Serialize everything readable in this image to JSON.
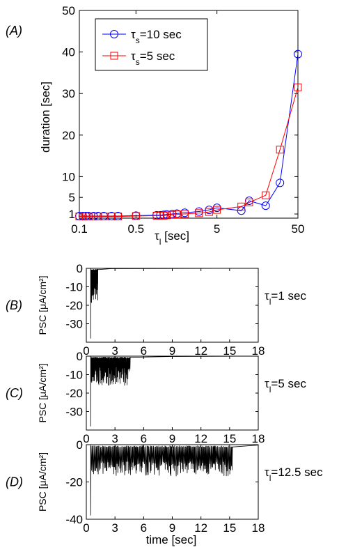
{
  "chart_data": [
    {
      "panel": "(A)",
      "type": "line",
      "xlabel": "τ_l [sec]",
      "ylabel": "duration [sec]",
      "xscale": "log",
      "xlim": [
        0.1,
        50
      ],
      "ylim": [
        0,
        50
      ],
      "xticks": [
        "0.1",
        "0.5",
        "5",
        "50"
      ],
      "yticks": [
        "1",
        "5",
        "10",
        "20",
        "30",
        "40",
        "50"
      ],
      "legend_position": "top-left",
      "series": [
        {
          "name": "τ_s=10 sec",
          "color": "#0000ff",
          "marker": "circle",
          "x": [
            0.1,
            0.11,
            0.12,
            0.13,
            0.15,
            0.17,
            0.2,
            0.25,
            0.3,
            0.5,
            0.9,
            1.0,
            1.1,
            1.2,
            1.4,
            1.6,
            2,
            3,
            4,
            5,
            10,
            12.5,
            20,
            30,
            50
          ],
          "y": [
            0.5,
            0.5,
            0.5,
            0.5,
            0.5,
            0.5,
            0.5,
            0.5,
            0.5,
            0.6,
            0.7,
            0.7,
            0.8,
            0.9,
            1.0,
            1.1,
            1.3,
            1.6,
            2.0,
            2.5,
            1.8,
            4.2,
            3.0,
            8.5,
            39.5
          ]
        },
        {
          "name": "τ_s=5 sec",
          "color": "#ff0000",
          "marker": "square",
          "x": [
            0.1,
            0.11,
            0.12,
            0.13,
            0.15,
            0.17,
            0.2,
            0.25,
            0.3,
            0.5,
            0.9,
            1.0,
            1.1,
            1.2,
            1.4,
            1.6,
            2,
            3,
            4,
            5,
            10,
            12.5,
            20,
            30,
            50
          ],
          "y": [
            0.4,
            0.4,
            0.4,
            0.4,
            0.4,
            0.4,
            0.4,
            0.4,
            0.4,
            0.5,
            0.6,
            0.6,
            0.6,
            0.7,
            0.8,
            0.9,
            1.0,
            1.2,
            1.5,
            2.0,
            2.8,
            3.8,
            5.5,
            16.5,
            31.5
          ]
        }
      ]
    },
    {
      "panel": "(B)",
      "type": "line",
      "ylabel": "PSC [μA/cm²]",
      "annotation": "τ_l=1 sec",
      "xlim": [
        0,
        18
      ],
      "ylim": [
        -40,
        0
      ],
      "xticks": [
        "0",
        "3",
        "6",
        "9",
        "12",
        "15",
        "18"
      ],
      "yticks": [
        "0",
        "-10",
        "-20",
        "-30"
      ],
      "trace": {
        "spike_start": 0.45,
        "spike_end": 1.2,
        "first_amp": -38,
        "amp": -13,
        "amp_jitter": 6,
        "spacing": 0.04,
        "baseline": -0.6,
        "tail_end": 2.6
      }
    },
    {
      "panel": "(C)",
      "type": "line",
      "ylabel": "PSC [μA/cm²]",
      "annotation": "τ_l=5 sec",
      "xlim": [
        0,
        18
      ],
      "ylim": [
        -40,
        0
      ],
      "xticks": [
        "0",
        "3",
        "6",
        "9",
        "12",
        "15",
        "18"
      ],
      "yticks": [
        "0",
        "-10",
        "-20",
        "-30"
      ],
      "trace": {
        "spike_start": 0.45,
        "spike_end": 4.6,
        "first_amp": -38,
        "amp": -11,
        "amp_jitter": 5,
        "spacing": 0.05,
        "baseline": -0.6,
        "tail_end": 9
      }
    },
    {
      "panel": "(D)",
      "type": "line",
      "ylabel": "PSC [μA/cm²]",
      "xlabel": "time [sec]",
      "annotation": "τ_l=12.5 sec",
      "xlim": [
        0,
        18
      ],
      "ylim": [
        -40,
        0
      ],
      "xticks": [
        "0",
        "3",
        "6",
        "9",
        "12",
        "15",
        "18"
      ],
      "yticks": [
        "0",
        "-20",
        "-40"
      ],
      "trace": {
        "spike_start": 0.45,
        "spike_end": 15.3,
        "first_amp": -38,
        "amp": -13,
        "amp_jitter": 4,
        "spacing": 0.09,
        "baseline": -0.8,
        "tail_end": 18
      }
    }
  ]
}
